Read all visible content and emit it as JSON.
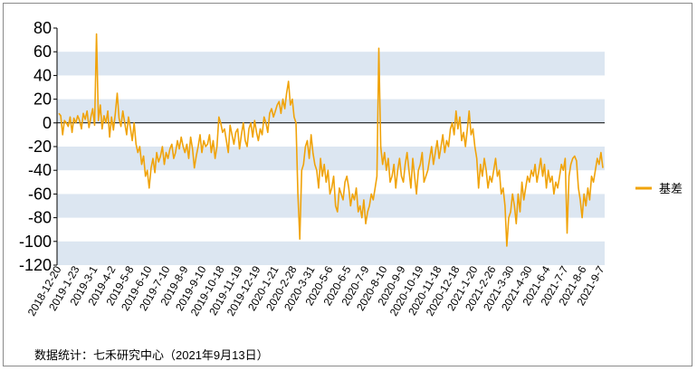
{
  "chart_data": {
    "type": "line",
    "ylim": [
      -120,
      80
    ],
    "yticks": [
      80,
      60,
      40,
      20,
      0,
      -20,
      -40,
      -60,
      -80,
      -100,
      -120
    ],
    "ytick_labels": [
      "80",
      "60",
      "40",
      "20",
      "0",
      "-20",
      "-40",
      "-60",
      "-80",
      "-100",
      "-120"
    ],
    "xtick_labels": [
      "2018-12-20",
      "2019-1-23",
      "2019-3-1",
      "2019-4-2",
      "2019-5-8",
      "2019-6-10",
      "2019-7-10",
      "2019-8-9",
      "2019-9-10",
      "2019-10-18",
      "2019-11-19",
      "2019-12-19",
      "2020-1-21",
      "2020-2-28",
      "2020-3-31",
      "2020-5-6",
      "2020-6-5",
      "2020-7-9",
      "2020-8-10",
      "2020-9-9",
      "2020-10-19",
      "2020-11-18",
      "2020-12-18",
      "2021-1-20",
      "2021-2-26",
      "2021-3-30",
      "2021-4-30",
      "2021-6-4",
      "2021-7-7",
      "2021-8-6",
      "2021-9-7"
    ],
    "grid_bands": "alternating light blue horizontal bands",
    "legend_position": "right",
    "series": [
      {
        "name": "基差",
        "color": "#f0a30a",
        "values": [
          8,
          6,
          -10,
          2,
          0,
          -3,
          5,
          -8,
          4,
          0,
          6,
          2,
          -5,
          8,
          3,
          10,
          -4,
          5,
          12,
          -2,
          75,
          2,
          15,
          -5,
          6,
          0,
          10,
          -12,
          5,
          -6,
          8,
          25,
          4,
          -3,
          10,
          0,
          -10,
          5,
          -4,
          -15,
          0,
          -18,
          -25,
          -20,
          -35,
          -28,
          -45,
          -40,
          -55,
          -38,
          -30,
          -42,
          -25,
          -33,
          -28,
          -20,
          -35,
          -25,
          -30,
          -22,
          -18,
          -30,
          -25,
          -15,
          -22,
          -12,
          -20,
          -25,
          -18,
          -30,
          -12,
          -22,
          -38,
          -28,
          -20,
          -10,
          -25,
          -15,
          -20,
          -18,
          -10,
          -25,
          -15,
          -30,
          -20,
          5,
          0,
          -8,
          -5,
          -15,
          -25,
          -2,
          -10,
          -18,
          -8,
          -5,
          -22,
          -10,
          0,
          -15,
          -20,
          -5,
          0,
          -12,
          2,
          -8,
          -15,
          -5,
          -10,
          5,
          0,
          -8,
          8,
          12,
          5,
          10,
          15,
          18,
          8,
          20,
          12,
          25,
          35,
          15,
          20,
          5,
          0,
          -60,
          -98,
          -40,
          -35,
          -20,
          -15,
          -30,
          -10,
          -25,
          -35,
          -40,
          -55,
          -30,
          -45,
          -35,
          -50,
          -40,
          -60,
          -55,
          -45,
          -70,
          -75,
          -55,
          -60,
          -65,
          -50,
          -45,
          -55,
          -70,
          -60,
          -65,
          -55,
          -75,
          -70,
          -80,
          -65,
          -85,
          -75,
          -70,
          -60,
          -65,
          -55,
          -45,
          63,
          -20,
          -35,
          -25,
          -40,
          -30,
          -50,
          -45,
          -35,
          -55,
          -40,
          -30,
          -45,
          -50,
          -35,
          -25,
          -40,
          -55,
          -30,
          -45,
          -60,
          -40,
          -35,
          -25,
          -50,
          -45,
          -40,
          -30,
          -20,
          -35,
          -25,
          -15,
          -30,
          -20,
          -10,
          -25,
          -15,
          -20,
          -5,
          0,
          -10,
          10,
          -5,
          5,
          -15,
          -8,
          -20,
          -5,
          10,
          -10,
          -5,
          -20,
          -30,
          -55,
          -35,
          -45,
          -30,
          -40,
          -55,
          -45,
          -50,
          -40,
          -30,
          -45,
          -40,
          -60,
          -55,
          -70,
          -104,
          -80,
          -75,
          -60,
          -70,
          -85,
          -60,
          -75,
          -50,
          -65,
          -55,
          -45,
          -50,
          -40,
          -45,
          -35,
          -50,
          -40,
          -30,
          -45,
          -35,
          -55,
          -40,
          -50,
          -45,
          -60,
          -50,
          -55,
          -45,
          -35,
          -40,
          -30,
          -93,
          -45,
          -35,
          -30,
          -28,
          -32,
          -55,
          -65,
          -80,
          -60,
          -70,
          -55,
          -65,
          -45,
          -50,
          -40,
          -30,
          -35,
          -25,
          -38
        ]
      }
    ]
  },
  "source_note": "数据统计：七禾研究中心（2021年9月13日）"
}
